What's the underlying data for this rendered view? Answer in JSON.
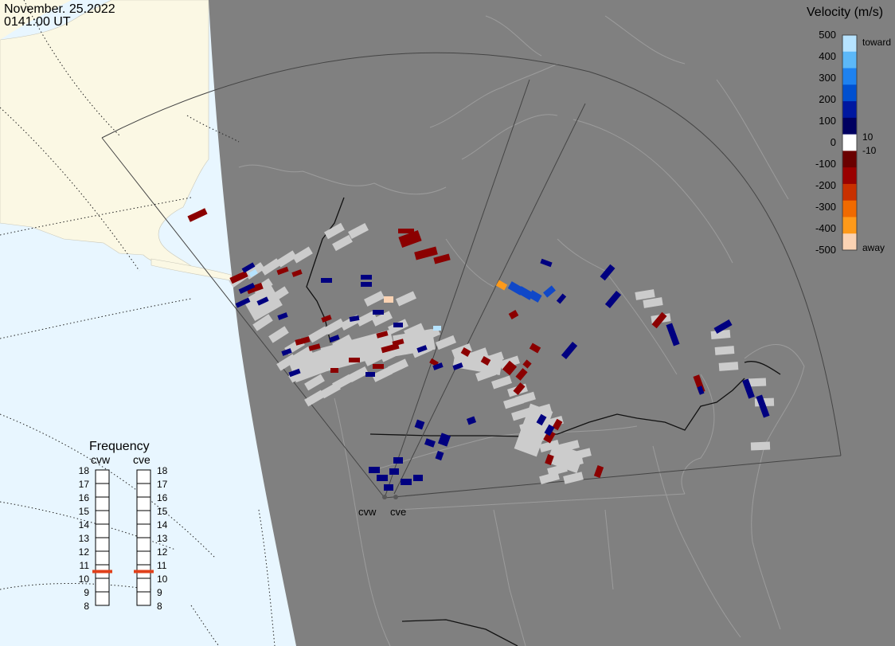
{
  "header": {
    "date": "November. 25.2022",
    "time": "0141:00 UT"
  },
  "velocity_legend": {
    "title": "Velocity (m/s)",
    "tick_labels": [
      "500",
      "400",
      "300",
      "200",
      "100",
      "0",
      "-100",
      "-200",
      "-300",
      "-400",
      "-500"
    ],
    "inner_labels": [
      "10",
      "-10"
    ],
    "toward_label": "toward",
    "away_label": "away",
    "colors": [
      "#fbd3b3",
      "#fe9a1a",
      "#f06a00",
      "#c93000",
      "#9a0000",
      "#6a0000",
      "#ffffff",
      "#000060",
      "#0018a0",
      "#0050d0",
      "#1e82f0",
      "#5cb8f8",
      "#b6e3ff"
    ]
  },
  "frequency_panel": {
    "title": "Frequency",
    "radars": [
      {
        "name": "cvw",
        "frequency_mhz": 10.5
      },
      {
        "name": "cve",
        "frequency_mhz": 10.5
      }
    ],
    "scale_labels": [
      "18",
      "17",
      "16",
      "15",
      "14",
      "13",
      "12",
      "11",
      "10",
      "9",
      "8"
    ],
    "marker_color": "#e0401a"
  },
  "map": {
    "radar_site_labels": [
      "cvw",
      "cve"
    ],
    "colors": {
      "ocean": "#e8f6ff",
      "land_day": "#fbf8e4",
      "night_side": "#808080",
      "ground_scatter": "#cccccc"
    }
  }
}
